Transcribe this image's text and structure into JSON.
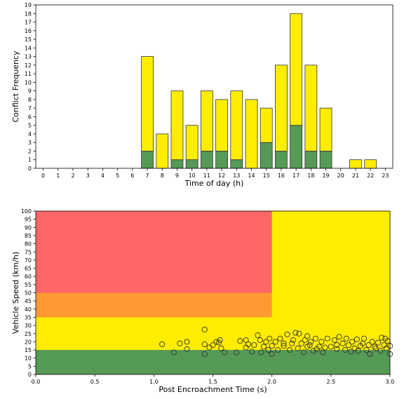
{
  "colors": {
    "green": "#559a55",
    "yellow": "#ffed00",
    "red": "#ff6666",
    "orange": "#ff9933",
    "edge": "#333333"
  },
  "chart_data": [
    {
      "type": "bar",
      "stacked": true,
      "xlabel": "Time of day (h)",
      "ylabel": "Conflict Frequency",
      "ylim": [
        0,
        19
      ],
      "grid": false,
      "categories": [
        "0",
        "1",
        "2",
        "3",
        "4",
        "5",
        "6",
        "7",
        "8",
        "9",
        "10",
        "11",
        "12",
        "13",
        "14",
        "15",
        "16",
        "17",
        "18",
        "19",
        "20",
        "21",
        "22",
        "23"
      ],
      "yticks": [
        "0",
        "1",
        "2",
        "3",
        "4",
        "5",
        "6",
        "7",
        "8",
        "9",
        "10",
        "11",
        "12",
        "13",
        "14",
        "15",
        "16",
        "17",
        "18",
        "19"
      ],
      "series": [
        {
          "color": "#559a55",
          "values": [
            0,
            0,
            0,
            0,
            0,
            0,
            0,
            2,
            0,
            1,
            1,
            2,
            2,
            1,
            0,
            3,
            2,
            5,
            2,
            2,
            0,
            0,
            0,
            0
          ]
        },
        {
          "color": "#ffed00",
          "values": [
            0,
            0,
            0,
            0,
            0,
            0,
            0,
            11,
            4,
            8,
            4,
            7,
            6,
            8,
            8,
            4,
            10,
            13,
            10,
            5,
            0,
            1,
            1,
            0
          ]
        }
      ]
    },
    {
      "type": "scatter",
      "xlabel": "Post Encroachment Time (s)",
      "ylabel": "Vehicle Speed (km/h)",
      "xlim": [
        0,
        3.0
      ],
      "ylim": [
        0,
        100
      ],
      "grid": false,
      "xticks": [
        "0.0",
        "0.5",
        "1.0",
        "1.5",
        "2.0",
        "2.5",
        "3.0"
      ],
      "yticks": [
        "0",
        "5",
        "10",
        "15",
        "20",
        "25",
        "30",
        "35",
        "40",
        "45",
        "50",
        "55",
        "60",
        "65",
        "70",
        "75",
        "80",
        "85",
        "90",
        "95",
        "100"
      ],
      "zones": [
        {
          "color": "#ffed00",
          "x": [
            0,
            3.0
          ],
          "y": [
            0,
            100
          ]
        },
        {
          "color": "#ff6666",
          "x": [
            0,
            2.0
          ],
          "y": [
            50,
            100
          ]
        },
        {
          "color": "#ff9933",
          "x": [
            0,
            2.0
          ],
          "y": [
            35,
            50
          ]
        },
        {
          "color": "#559a55",
          "x": [
            0,
            3.0
          ],
          "y": [
            0,
            15
          ]
        }
      ],
      "points": [
        [
          1.07,
          18.5
        ],
        [
          1.17,
          13.5
        ],
        [
          1.22,
          19
        ],
        [
          1.28,
          15.5
        ],
        [
          1.28,
          20
        ],
        [
          1.43,
          27.5
        ],
        [
          1.43,
          18.5
        ],
        [
          1.43,
          12.5
        ],
        [
          1.47,
          16.5
        ],
        [
          1.5,
          18
        ],
        [
          1.53,
          20
        ],
        [
          1.55,
          19.5
        ],
        [
          1.56,
          21
        ],
        [
          1.57,
          16
        ],
        [
          1.6,
          13.5
        ],
        [
          1.7,
          13.5
        ],
        [
          1.73,
          20.5
        ],
        [
          1.78,
          16.5
        ],
        [
          1.78,
          21
        ],
        [
          1.8,
          18.5
        ],
        [
          1.83,
          14
        ],
        [
          1.85,
          18
        ],
        [
          1.88,
          24
        ],
        [
          1.9,
          21
        ],
        [
          1.91,
          13.5
        ],
        [
          1.93,
          17
        ],
        [
          1.95,
          20
        ],
        [
          1.97,
          15
        ],
        [
          1.98,
          22
        ],
        [
          2.0,
          17.5
        ],
        [
          2.0,
          12.5
        ],
        [
          2.03,
          20
        ],
        [
          2.05,
          15
        ],
        [
          2.07,
          22
        ],
        [
          2.1,
          19
        ],
        [
          2.1,
          17.5
        ],
        [
          2.13,
          24.5
        ],
        [
          2.15,
          15
        ],
        [
          2.17,
          19
        ],
        [
          2.18,
          21
        ],
        [
          2.2,
          25.5
        ],
        [
          2.22,
          16
        ],
        [
          2.23,
          25
        ],
        [
          2.25,
          19
        ],
        [
          2.27,
          13.5
        ],
        [
          2.28,
          21
        ],
        [
          2.3,
          17
        ],
        [
          2.3,
          23.5
        ],
        [
          2.32,
          18
        ],
        [
          2.33,
          20
        ],
        [
          2.35,
          14.5
        ],
        [
          2.37,
          22
        ],
        [
          2.38,
          15.5
        ],
        [
          2.4,
          17
        ],
        [
          2.42,
          20
        ],
        [
          2.43,
          13.5
        ],
        [
          2.45,
          16.5
        ],
        [
          2.47,
          22
        ],
        [
          2.5,
          17
        ],
        [
          2.53,
          21
        ],
        [
          2.55,
          18
        ],
        [
          2.55,
          15.5
        ],
        [
          2.57,
          23
        ],
        [
          2.6,
          19
        ],
        [
          2.62,
          15
        ],
        [
          2.63,
          22
        ],
        [
          2.65,
          18
        ],
        [
          2.67,
          14
        ],
        [
          2.68,
          20
        ],
        [
          2.7,
          16
        ],
        [
          2.72,
          21.5
        ],
        [
          2.73,
          14.5
        ],
        [
          2.75,
          17.5
        ],
        [
          2.77,
          19
        ],
        [
          2.78,
          22
        ],
        [
          2.8,
          15
        ],
        [
          2.82,
          18
        ],
        [
          2.83,
          12.5
        ],
        [
          2.85,
          20
        ],
        [
          2.87,
          17
        ],
        [
          2.88,
          16
        ],
        [
          2.9,
          19.5
        ],
        [
          2.92,
          14.5
        ],
        [
          2.93,
          22.5
        ],
        [
          2.95,
          18
        ],
        [
          2.97,
          16
        ],
        [
          2.98,
          20.5
        ],
        [
          3.0,
          12.5
        ],
        [
          3.0,
          17.5
        ],
        [
          2.96,
          22
        ]
      ]
    }
  ]
}
